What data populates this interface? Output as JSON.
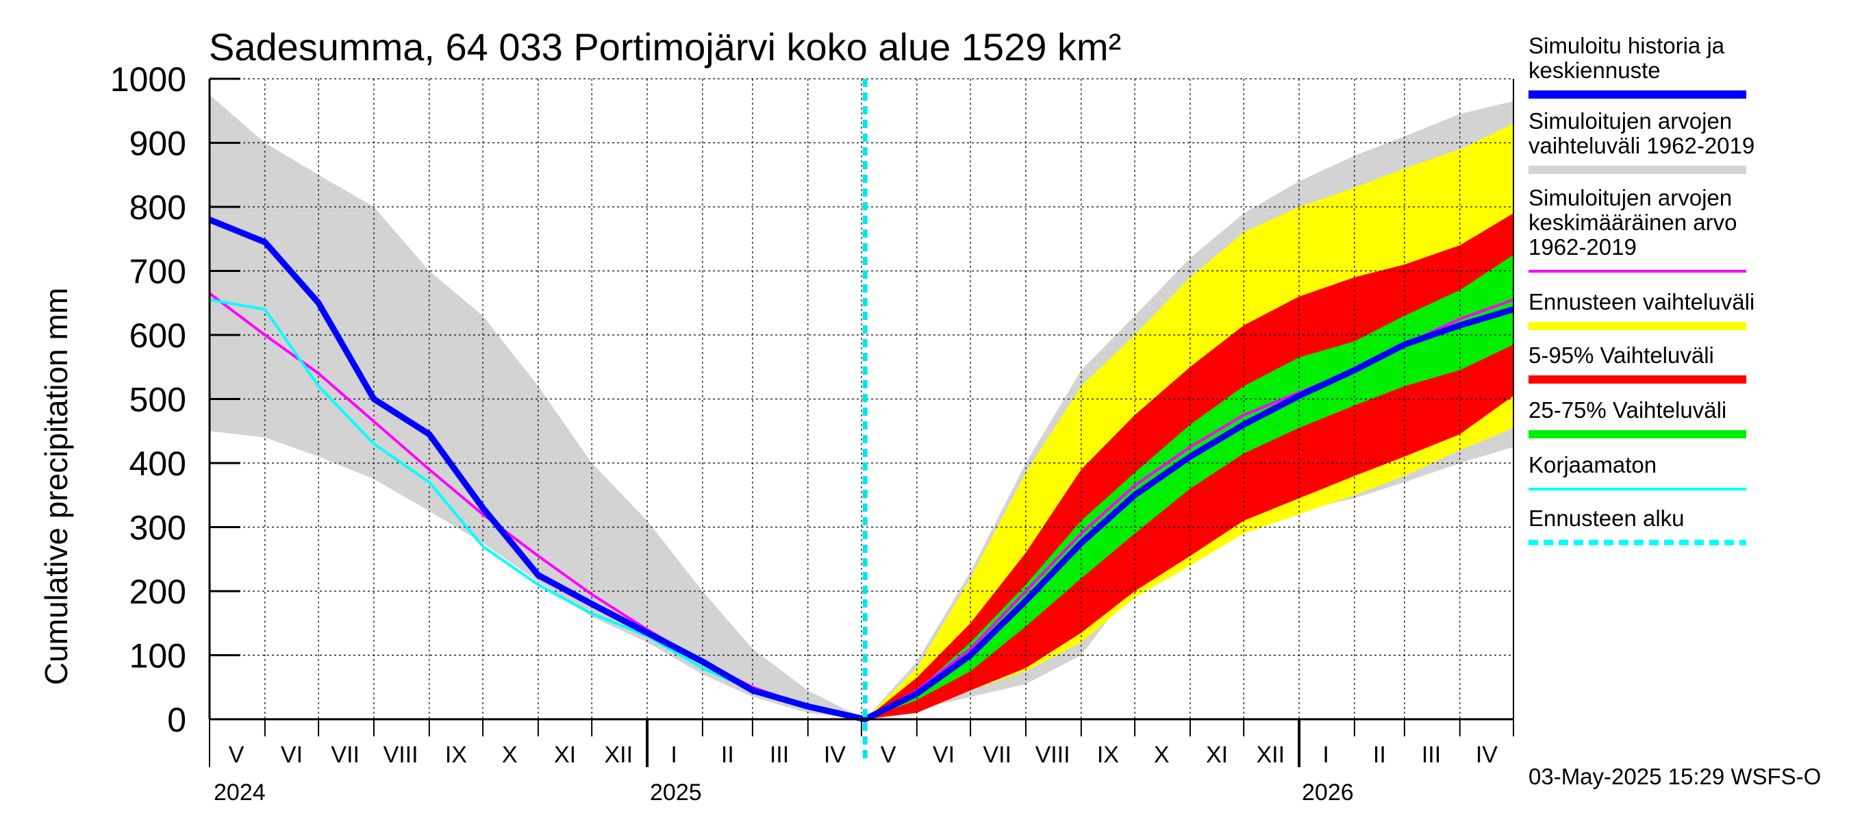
{
  "chart_data": {
    "type": "area",
    "title": "Sadesumma, 64 033 Portimojärvi koko alue 1529 km²",
    "ylabel": "Cumulative precipitation   mm",
    "ylim": [
      0,
      1000
    ],
    "yticks": [
      0,
      100,
      200,
      300,
      400,
      500,
      600,
      700,
      800,
      900,
      1000
    ],
    "xlim": [
      "2024-05-01",
      "2026-05-01"
    ],
    "forecast_start": "2025-05-03",
    "grid": true,
    "legend_position": "right",
    "month_labels": [
      {
        "label": "V",
        "date": "2024-05-16"
      },
      {
        "label": "VI",
        "date": "2024-06-16"
      },
      {
        "label": "VII",
        "date": "2024-07-16"
      },
      {
        "label": "VIII",
        "date": "2024-08-16"
      },
      {
        "label": "IX",
        "date": "2024-09-16"
      },
      {
        "label": "X",
        "date": "2024-10-16"
      },
      {
        "label": "XI",
        "date": "2024-11-16"
      },
      {
        "label": "XII",
        "date": "2024-12-16"
      },
      {
        "label": "I",
        "date": "2025-01-16"
      },
      {
        "label": "II",
        "date": "2025-02-15"
      },
      {
        "label": "III",
        "date": "2025-03-16"
      },
      {
        "label": "IV",
        "date": "2025-04-16"
      },
      {
        "label": "V",
        "date": "2025-05-16"
      },
      {
        "label": "VI",
        "date": "2025-06-16"
      },
      {
        "label": "VII",
        "date": "2025-07-16"
      },
      {
        "label": "VIII",
        "date": "2025-08-16"
      },
      {
        "label": "IX",
        "date": "2025-09-16"
      },
      {
        "label": "X",
        "date": "2025-10-16"
      },
      {
        "label": "XI",
        "date": "2025-11-16"
      },
      {
        "label": "XII",
        "date": "2025-12-16"
      },
      {
        "label": "I",
        "date": "2026-01-16"
      },
      {
        "label": "II",
        "date": "2026-02-15"
      },
      {
        "label": "III",
        "date": "2026-03-16"
      },
      {
        "label": "IV",
        "date": "2026-04-16"
      }
    ],
    "year_labels": [
      {
        "label": "2024",
        "date": "2024-05-01"
      },
      {
        "label": "2025",
        "date": "2025-01-01"
      },
      {
        "label": "2026",
        "date": "2026-01-01"
      }
    ],
    "series": [
      {
        "name": "Simuloitujen arvojen vaihteluväli 1962-2019",
        "kind": "band",
        "color": "#d3d3d3",
        "x": [
          "2024-05-01",
          "2024-06-01",
          "2024-07-01",
          "2024-08-01",
          "2024-09-01",
          "2024-10-01",
          "2024-11-01",
          "2024-12-01",
          "2025-01-01",
          "2025-02-01",
          "2025-03-01",
          "2025-04-01",
          "2025-05-03",
          "2025-06-01",
          "2025-07-01",
          "2025-08-01",
          "2025-09-01",
          "2025-10-01",
          "2025-11-01",
          "2025-12-01",
          "2026-01-01",
          "2026-02-01",
          "2026-03-01",
          "2026-04-01",
          "2026-05-01"
        ],
        "upper": [
          975,
          900,
          850,
          800,
          700,
          630,
          520,
          400,
          310,
          200,
          110,
          45,
          0,
          90,
          230,
          400,
          545,
          630,
          720,
          790,
          840,
          880,
          910,
          945,
          965
        ],
        "lower": [
          450,
          440,
          410,
          375,
          325,
          275,
          215,
          160,
          120,
          70,
          35,
          10,
          0,
          15,
          35,
          55,
          100,
          210,
          260,
          300,
          325,
          345,
          370,
          400,
          425
        ]
      },
      {
        "name": "Ennusteen vaihteluväli",
        "kind": "band",
        "color": "#ffff00",
        "x": [
          "2025-05-03",
          "2025-06-01",
          "2025-07-01",
          "2025-08-01",
          "2025-09-01",
          "2025-10-01",
          "2025-11-01",
          "2025-12-01",
          "2026-01-01",
          "2026-02-01",
          "2026-03-01",
          "2026-04-01",
          "2026-05-01"
        ],
        "upper": [
          0,
          80,
          220,
          385,
          520,
          600,
          690,
          760,
          800,
          830,
          860,
          890,
          930
        ],
        "lower": [
          0,
          20,
          45,
          75,
          120,
          190,
          240,
          290,
          320,
          350,
          380,
          420,
          455
        ]
      },
      {
        "name": "5-95% Vaihteluväli",
        "kind": "band",
        "color": "#ff0000",
        "x": [
          "2025-05-03",
          "2025-06-01",
          "2025-07-01",
          "2025-08-01",
          "2025-09-01",
          "2025-10-01",
          "2025-11-01",
          "2025-12-01",
          "2026-01-01",
          "2026-02-01",
          "2026-03-01",
          "2026-04-01",
          "2026-05-01"
        ],
        "upper": [
          0,
          65,
          150,
          260,
          390,
          475,
          550,
          615,
          660,
          690,
          710,
          740,
          790
        ],
        "lower": [
          0,
          10,
          45,
          80,
          135,
          200,
          255,
          310,
          345,
          380,
          410,
          445,
          505
        ]
      },
      {
        "name": "25-75% Vaihteluväli",
        "kind": "band",
        "color": "#00ee00",
        "x": [
          "2025-05-03",
          "2025-06-01",
          "2025-07-01",
          "2025-08-01",
          "2025-09-01",
          "2025-10-01",
          "2025-11-01",
          "2025-12-01",
          "2026-01-01",
          "2026-02-01",
          "2026-03-01",
          "2026-04-01",
          "2026-05-01"
        ],
        "upper": [
          0,
          45,
          120,
          210,
          310,
          385,
          460,
          520,
          565,
          590,
          630,
          670,
          725
        ],
        "lower": [
          0,
          30,
          75,
          145,
          220,
          290,
          360,
          415,
          455,
          490,
          520,
          545,
          585
        ]
      },
      {
        "name": "Simuloitujen arvojen keskimääräinen arvo 1962-2019",
        "kind": "line",
        "color": "#ff00ff",
        "x": [
          "2024-05-01",
          "2024-06-01",
          "2024-07-01",
          "2024-08-01",
          "2024-09-01",
          "2024-10-01",
          "2024-11-01",
          "2024-12-01",
          "2025-01-01",
          "2025-02-01",
          "2025-03-01",
          "2025-04-01",
          "2025-05-03",
          "2025-06-01",
          "2025-07-01",
          "2025-08-01",
          "2025-09-01",
          "2025-10-01",
          "2025-11-01",
          "2025-12-01",
          "2026-01-01",
          "2026-02-01",
          "2026-03-01",
          "2026-04-01",
          "2026-05-01"
        ],
        "y": [
          665,
          600,
          540,
          465,
          390,
          320,
          255,
          195,
          140,
          90,
          50,
          20,
          0,
          45,
          110,
          200,
          290,
          365,
          425,
          475,
          510,
          545,
          585,
          625,
          655
        ]
      },
      {
        "name": "Korjaamaton",
        "kind": "line",
        "color": "#00ffff",
        "x": [
          "2024-05-01",
          "2024-06-01",
          "2024-07-01",
          "2024-08-01",
          "2024-09-01",
          "2024-10-01",
          "2024-11-01",
          "2024-12-01",
          "2025-01-01",
          "2025-02-01",
          "2025-03-01",
          "2025-04-01",
          "2025-05-03"
        ],
        "y": [
          655,
          640,
          520,
          430,
          370,
          270,
          210,
          165,
          130,
          80,
          45,
          20,
          0
        ]
      },
      {
        "name": "Simuloitu historia ja keskiennuste",
        "kind": "line",
        "color": "#0000ff",
        "x": [
          "2024-05-01",
          "2024-06-01",
          "2024-07-01",
          "2024-08-01",
          "2024-09-01",
          "2024-10-01",
          "2024-11-01",
          "2024-12-01",
          "2025-01-01",
          "2025-02-01",
          "2025-03-01",
          "2025-04-01",
          "2025-05-03",
          "2025-06-01",
          "2025-07-01",
          "2025-08-01",
          "2025-09-01",
          "2025-10-01",
          "2025-11-01",
          "2025-12-01",
          "2026-01-01",
          "2026-02-01",
          "2026-03-01",
          "2026-04-01",
          "2026-05-01"
        ],
        "y": [
          780,
          745,
          650,
          500,
          445,
          330,
          225,
          180,
          135,
          90,
          45,
          20,
          0,
          40,
          100,
          185,
          275,
          350,
          410,
          460,
          505,
          545,
          585,
          615,
          640
        ]
      }
    ]
  },
  "legend": [
    {
      "lines": [
        "Simuloitu historia ja",
        "keskiennuste"
      ],
      "color": "#0000ff",
      "style": "thick"
    },
    {
      "lines": [
        "Simuloitujen arvojen",
        "vaihteluväli 1962-2019"
      ],
      "color": "#d3d3d3",
      "style": "thick"
    },
    {
      "lines": [
        "Simuloitujen arvojen",
        "keskimääräinen arvo",
        "   1962-2019"
      ],
      "color": "#ff00ff",
      "style": "thin"
    },
    {
      "lines": [
        "Ennusteen vaihteluväli"
      ],
      "color": "#ffff00",
      "style": "thick"
    },
    {
      "lines": [
        "5-95% Vaihteluväli"
      ],
      "color": "#ff0000",
      "style": "thick"
    },
    {
      "lines": [
        "25-75% Vaihteluväli"
      ],
      "color": "#00ee00",
      "style": "thick"
    },
    {
      "lines": [
        "Korjaamaton"
      ],
      "color": "#00ffff",
      "style": "thin"
    },
    {
      "lines": [
        "Ennusteen alku"
      ],
      "color": "#00ffff",
      "style": "dashed"
    }
  ],
  "footer": "03-May-2025 15:29 WSFS-O"
}
